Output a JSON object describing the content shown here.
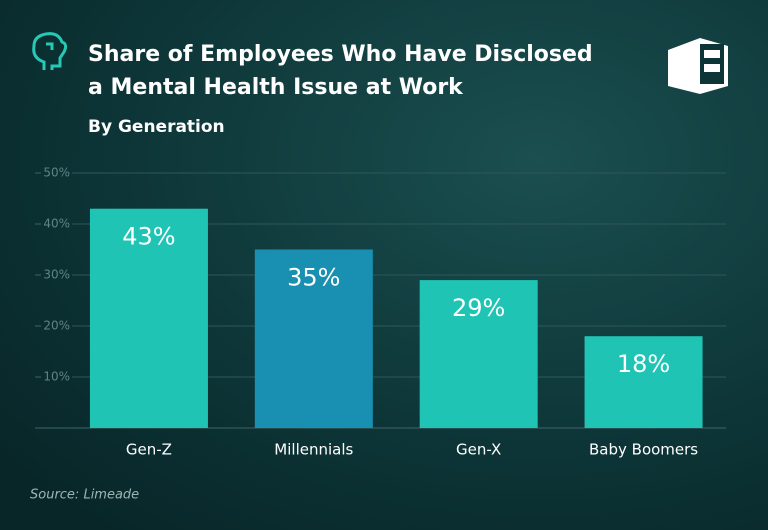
{
  "chart_data": {
    "type": "bar",
    "title": [
      "Share of Employees Who Have Disclosed",
      "a Mental Health Issue at Work"
    ],
    "subtitle": "By Generation",
    "source": "Source: Limeade",
    "categories": [
      "Gen-Z",
      "Millennials",
      "Gen-X",
      "Baby Boomers"
    ],
    "values": [
      43,
      35,
      29,
      18
    ],
    "value_labels": [
      "43%",
      "35%",
      "29%",
      "18%"
    ],
    "colors": [
      "#1fc4b4",
      "#1990b2",
      "#1fc4b4",
      "#1fc4b4"
    ],
    "ylim": [
      0,
      50
    ],
    "yticks": [
      {
        "value": 10,
        "label": "10%"
      },
      {
        "value": 20,
        "label": "20%"
      },
      {
        "value": 30,
        "label": "30%"
      },
      {
        "value": 40,
        "label": "40%"
      },
      {
        "value": 50,
        "label": "50%"
      }
    ],
    "grid": true
  }
}
